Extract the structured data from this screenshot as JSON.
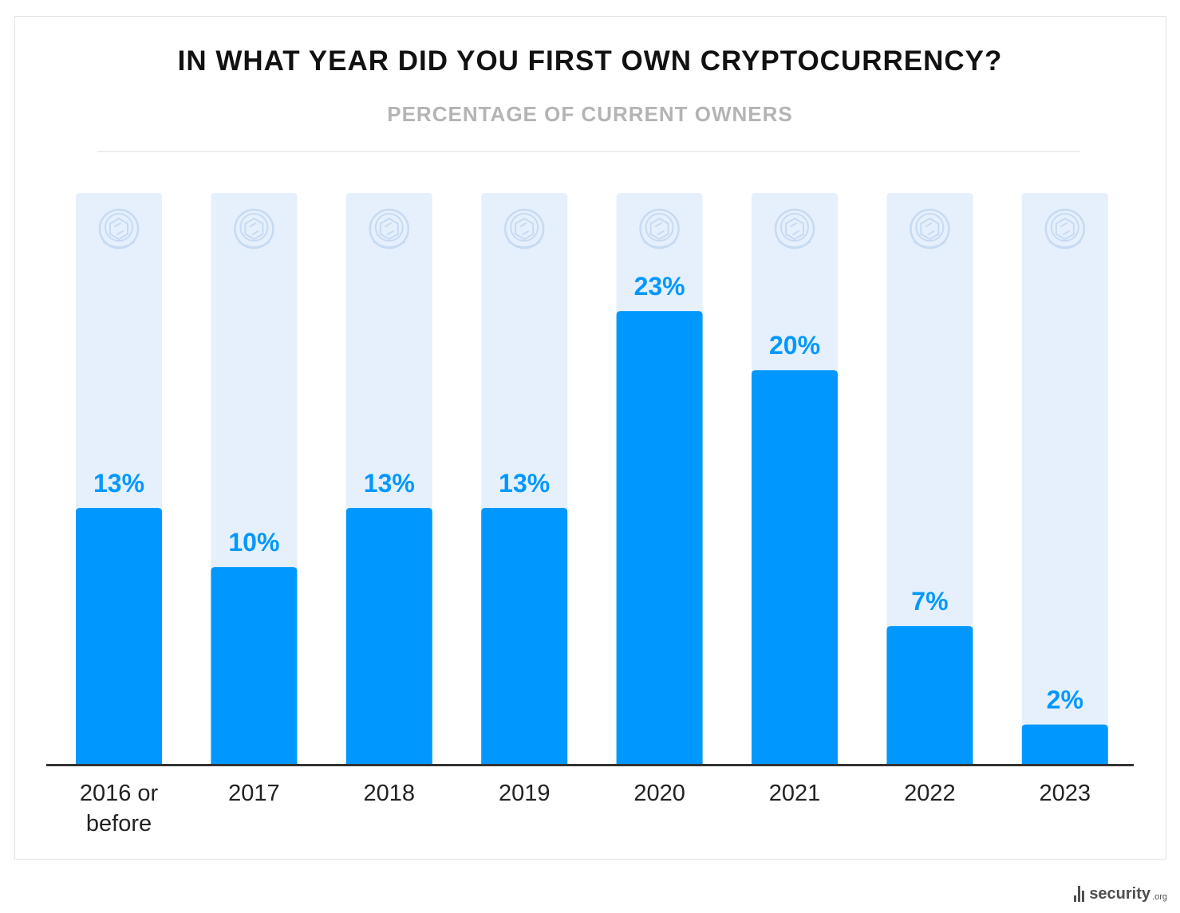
{
  "chart_data": {
    "type": "bar",
    "title": "IN WHAT YEAR DID YOU FIRST OWN CRYPTOCURRENCY?",
    "subtitle": "PERCENTAGE OF CURRENT OWNERS",
    "categories": [
      "2016 or before",
      "2017",
      "2018",
      "2019",
      "2020",
      "2021",
      "2022",
      "2023"
    ],
    "values": [
      13,
      10,
      13,
      13,
      23,
      20,
      7,
      2
    ],
    "value_labels": [
      "13%",
      "10%",
      "13%",
      "13%",
      "23%",
      "20%",
      "7%",
      "2%"
    ],
    "unit": "%",
    "ylim": [
      0,
      29
    ],
    "xlabel": "",
    "ylabel": "",
    "grid": false,
    "colors": {
      "bar": "#0098ff",
      "track": "#e5f0fc",
      "value_label": "#0098ff",
      "axis": "#333333",
      "coin_icon": "#c7daf2"
    },
    "icon": "crypto-coin-icon"
  },
  "branding": {
    "name": "security",
    "tld": ".org",
    "icon": "signal-bars-icon"
  }
}
